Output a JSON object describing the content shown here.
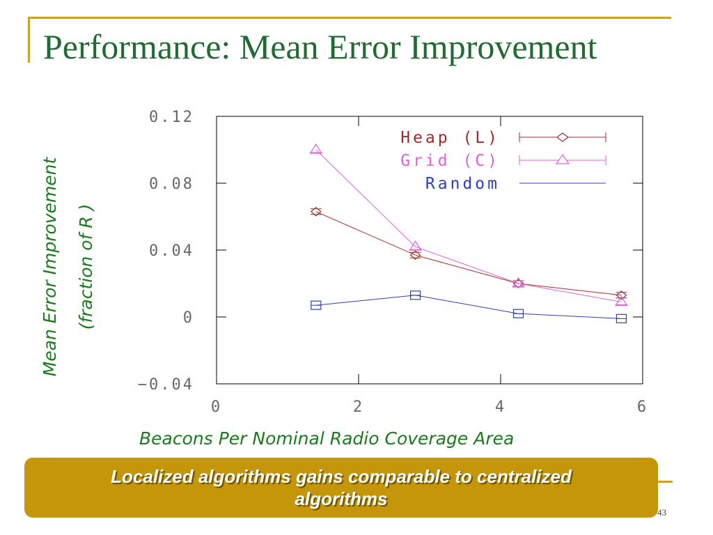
{
  "slide": {
    "title": "Performance: Mean Error Improvement",
    "callout": "Localized algorithms gains comparable to centralized algorithms",
    "page_number": "43"
  },
  "colors": {
    "title": "#1F6B31",
    "axis_labels": "#1B7A1E",
    "accent": "#C9A227",
    "callout_bg": "#C5960A"
  },
  "chart_data": {
    "type": "line",
    "title": "",
    "xlabel": "Beacons Per Nominal Radio Coverage Area",
    "ylabel_lines": [
      "Mean Error Improvement",
      "(fraction of R )"
    ],
    "xlim": [
      0,
      6
    ],
    "ylim": [
      -0.04,
      0.12
    ],
    "x_ticks": [
      0,
      2,
      4,
      6
    ],
    "y_ticks": [
      -0.04,
      0,
      0.04,
      0.08,
      0.12
    ],
    "x_tick_labels": [
      "0",
      "2",
      "4",
      "6"
    ],
    "y_tick_labels": [
      "−0.04",
      "0",
      "0.04",
      "0.08",
      "0.12"
    ],
    "grid": false,
    "legend_position": "top-right",
    "series": [
      {
        "name": "Heap (L)",
        "color": "#A52A2A",
        "marker": "diamond",
        "x": [
          1.4,
          2.8,
          4.25,
          5.7
        ],
        "y": [
          0.063,
          0.037,
          0.02,
          0.013
        ]
      },
      {
        "name": "Grid (C)",
        "color": "#E060E0",
        "marker": "triangle",
        "x": [
          1.4,
          2.8,
          4.25,
          5.7
        ],
        "y": [
          0.1,
          0.042,
          0.02,
          0.009
        ]
      },
      {
        "name": "Random",
        "color": "#2E3CC0",
        "marker": "square",
        "x": [
          1.4,
          2.8,
          4.25,
          5.7
        ],
        "y": [
          0.007,
          0.013,
          0.002,
          -0.001
        ]
      }
    ]
  }
}
